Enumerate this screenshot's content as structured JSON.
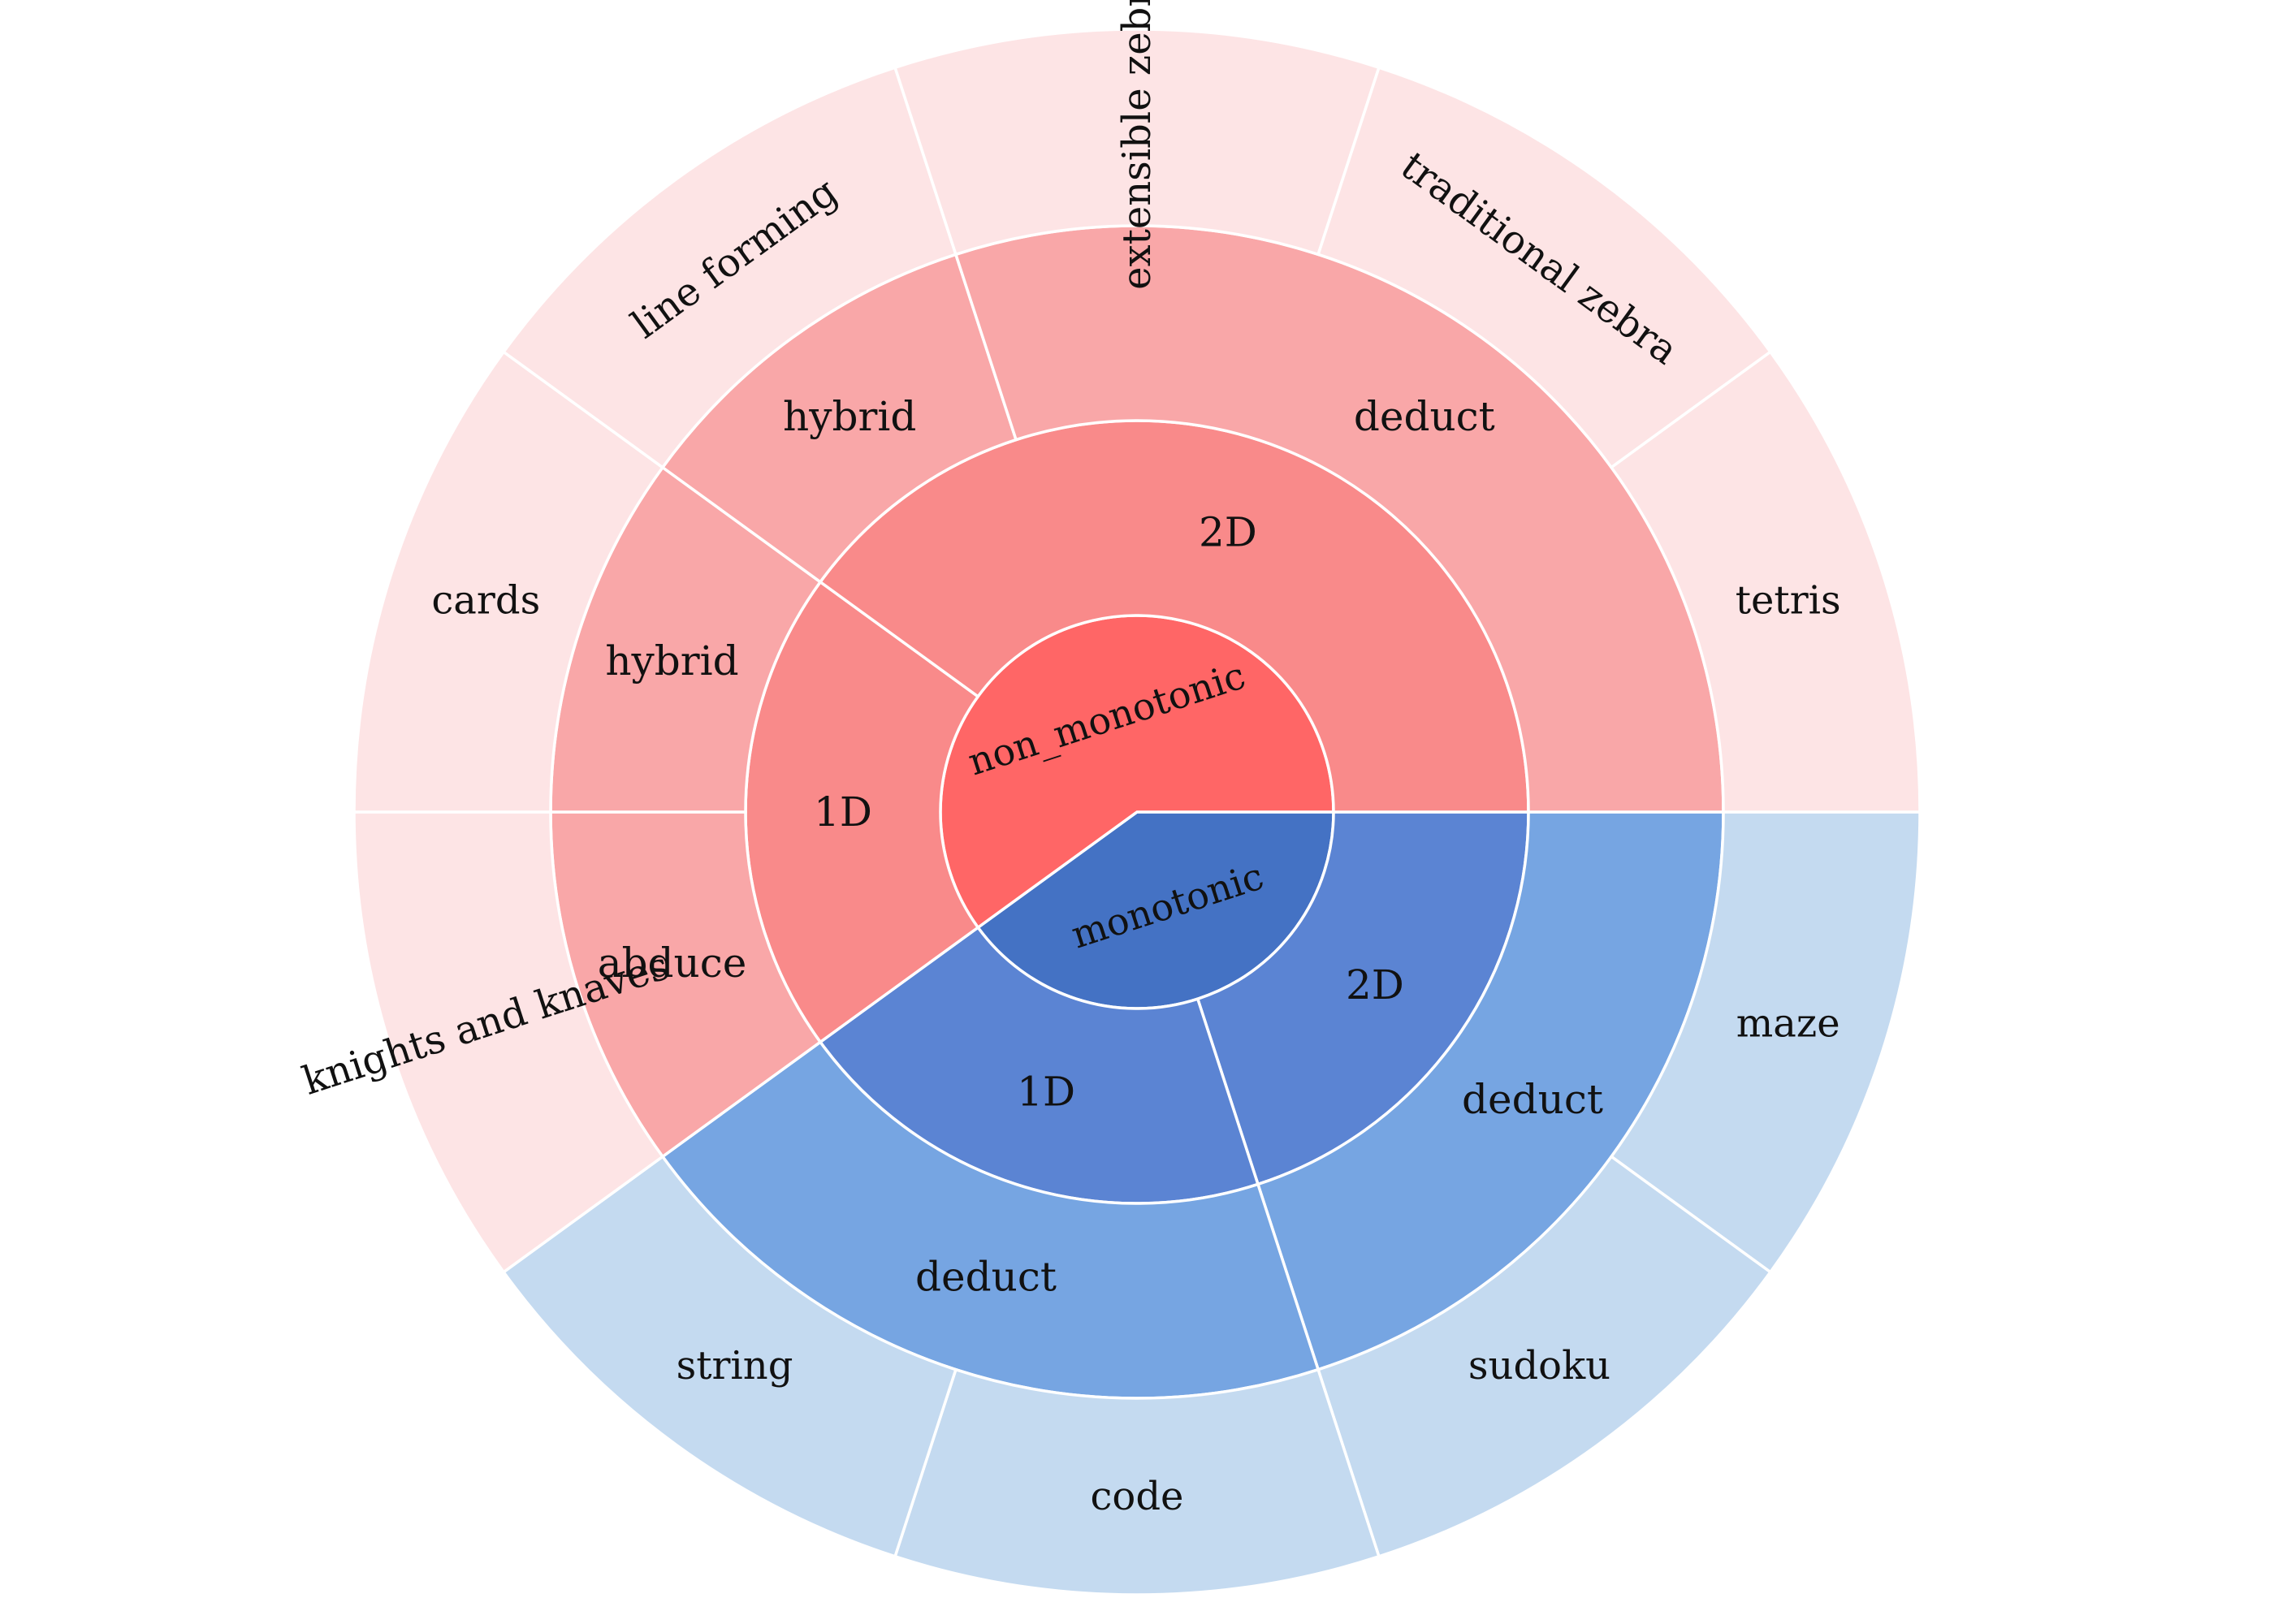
{
  "chart_data": {
    "type": "sunburst",
    "title": "",
    "colors": {
      "non_monotonic": [
        "#ff6666",
        "#f98a8a",
        "#f9a7a8",
        "#fde4e5"
      ],
      "monotonic": [
        "#4472c4",
        "#5b84d3",
        "#76a5e2",
        "#c4daf0"
      ]
    },
    "hierarchy": [
      {
        "name": "monotonic",
        "children": [
          {
            "name": "2D",
            "children": [
              {
                "name": "deduct",
                "children": [
                  {
                    "name": "maze",
                    "value": 1
                  },
                  {
                    "name": "sudoku",
                    "value": 1
                  }
                ]
              }
            ]
          },
          {
            "name": "1D",
            "children": [
              {
                "name": "deduct",
                "children": [
                  {
                    "name": "code",
                    "value": 1
                  },
                  {
                    "name": "string",
                    "value": 1
                  }
                ]
              }
            ]
          }
        ]
      },
      {
        "name": "non_monotonic",
        "children": [
          {
            "name": "1D",
            "children": [
              {
                "name": "abduce",
                "children": [
                  {
                    "name": "knights and knaves",
                    "value": 1
                  }
                ]
              },
              {
                "name": "hybrid",
                "children": [
                  {
                    "name": "cards",
                    "value": 1
                  }
                ]
              }
            ]
          },
          {
            "name": "2D",
            "children": [
              {
                "name": "hybrid",
                "children": [
                  {
                    "name": "line forming",
                    "value": 1
                  }
                ]
              },
              {
                "name": "deduct",
                "children": [
                  {
                    "name": "extensible zebra",
                    "value": 1
                  },
                  {
                    "name": "traditional zebra",
                    "value": 1
                  },
                  {
                    "name": "tetris",
                    "value": 1
                  }
                ]
              }
            ]
          }
        ]
      }
    ]
  }
}
